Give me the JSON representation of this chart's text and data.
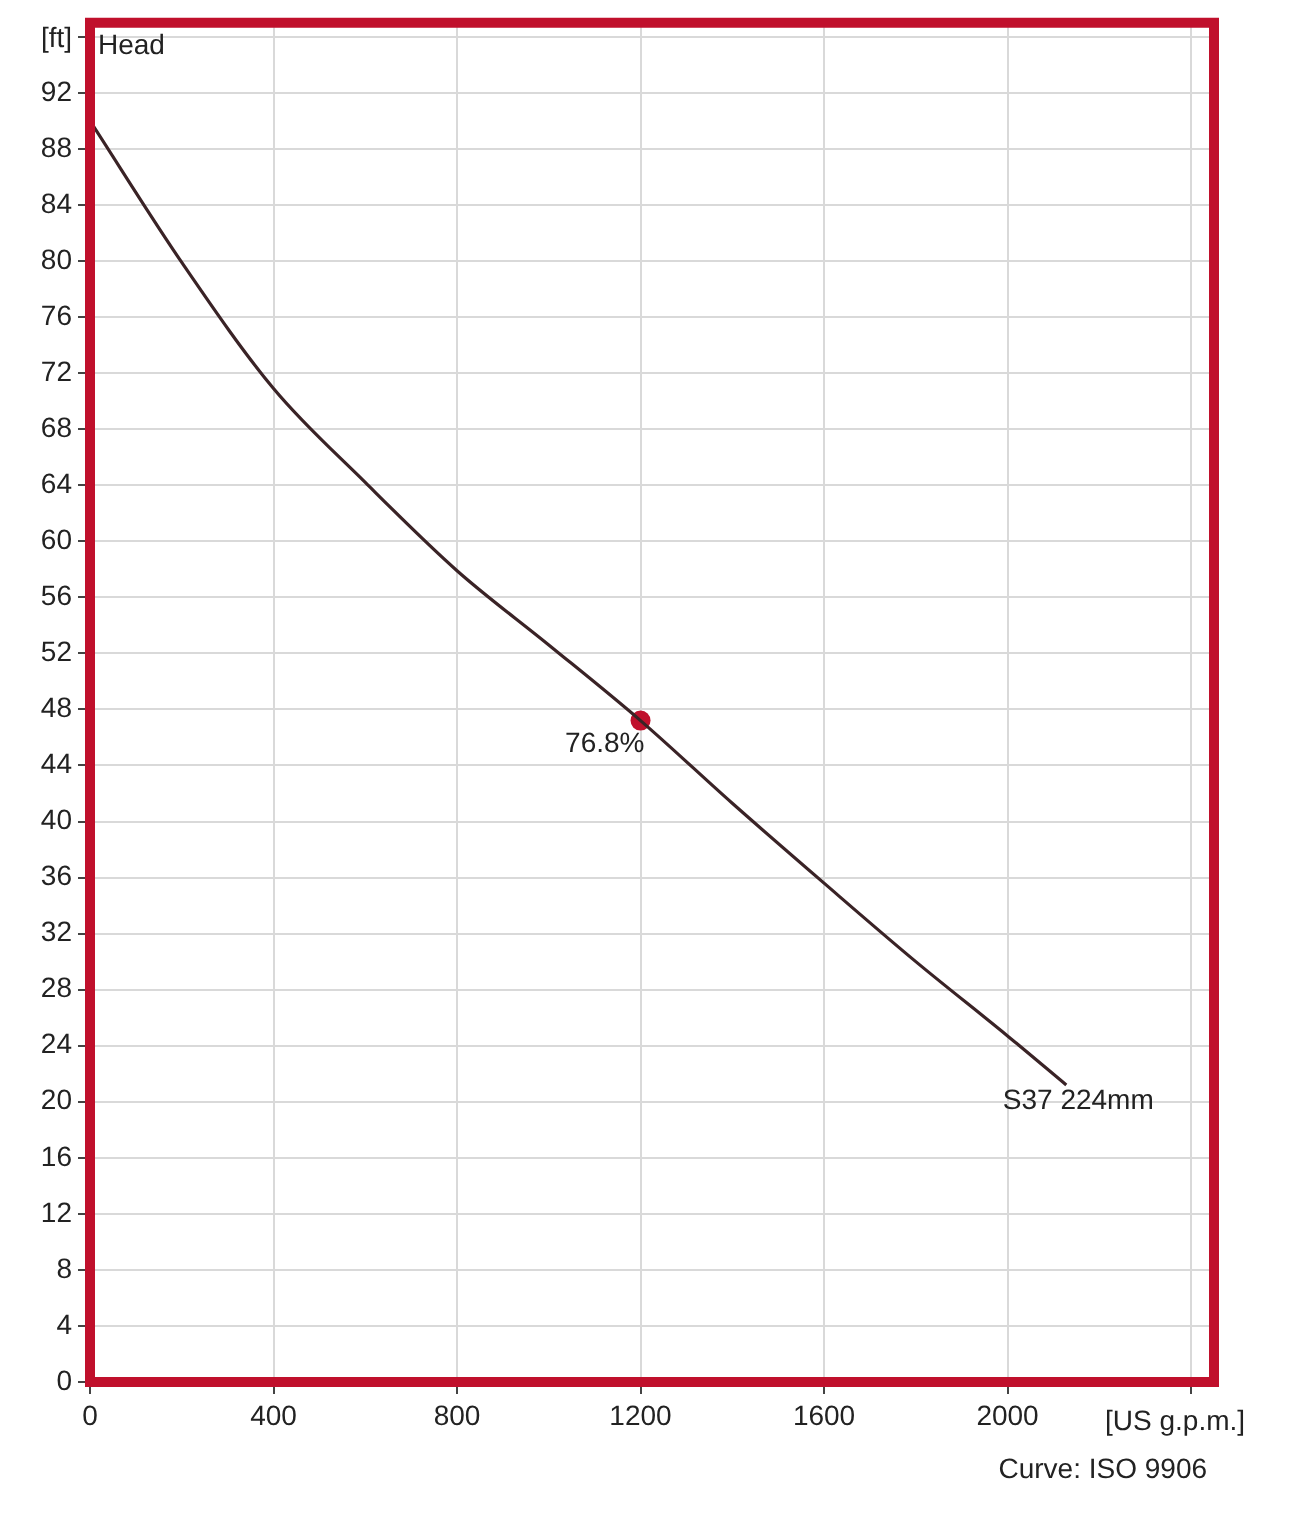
{
  "chart_data": {
    "type": "line",
    "title": "Head",
    "xlabel": "[US g.p.m.]",
    "ylabel": "[ft]",
    "annotations": [
      "Curve: ISO 9906",
      {
        "text": "76.8%",
        "x": 1200,
        "y": 47.2
      }
    ],
    "x": [
      0,
      200,
      400,
      600,
      800,
      1000,
      1200,
      1400,
      1600,
      1800,
      2000,
      2128
    ],
    "series": [
      {
        "name": "S37 224mm",
        "color": "#3a2326",
        "values": [
          90,
          79.9,
          70.9,
          64.2,
          57.9,
          52.6,
          47.2,
          41.3,
          35.6,
          30.0,
          24.7,
          21.2
        ]
      },
      {
        "type": "scatter",
        "color": "#c0102c",
        "x": [
          1200
        ],
        "values": [
          47.2
        ],
        "marker": "circle"
      }
    ],
    "xlim": [
      0,
      2450
    ],
    "xticks": [
      0,
      400,
      800,
      1200,
      1600,
      2000,
      {
        "value": 2400,
        "label": null
      }
    ],
    "ylim": [
      0,
      97
    ],
    "yticks": [
      0,
      4,
      8,
      12,
      16,
      20,
      24,
      28,
      32,
      36,
      40,
      44,
      48,
      52,
      56,
      60,
      64,
      68,
      72,
      76,
      80,
      84,
      88,
      92,
      {
        "value": 96,
        "label": null
      }
    ],
    "grid": true,
    "legend": false,
    "line_style": "solid"
  }
}
